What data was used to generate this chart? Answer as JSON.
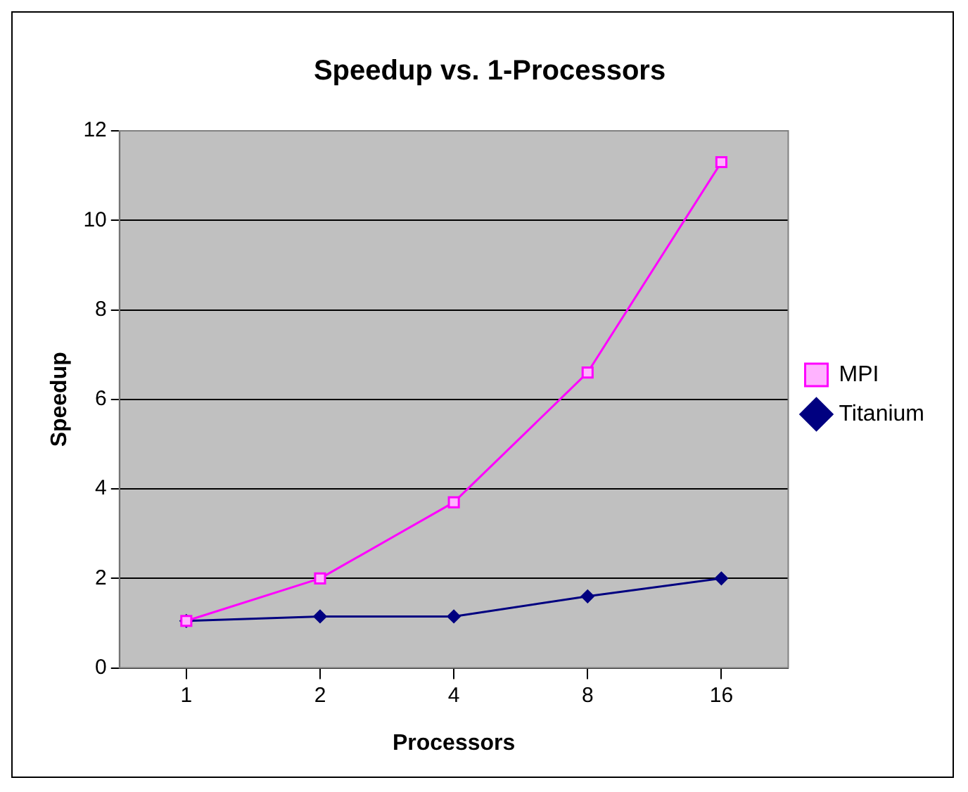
{
  "chart_data": {
    "type": "line",
    "title": "Speedup vs. 1-Processors",
    "xlabel": "Processors",
    "ylabel": "Speedup",
    "categories": [
      "1",
      "2",
      "4",
      "8",
      "16"
    ],
    "series": [
      {
        "name": "Titanium",
        "color": "#000080",
        "values": [
          1.05,
          1.15,
          1.15,
          1.6,
          2.0
        ],
        "marker": "diamond"
      },
      {
        "name": "MPI",
        "color": "#ff00ff",
        "values": [
          1.05,
          2.0,
          3.7,
          6.6,
          11.3
        ],
        "marker": "square"
      }
    ],
    "ylim": [
      0,
      12
    ],
    "yticks": [
      0,
      2,
      4,
      6,
      8,
      10,
      12
    ],
    "grid": "y",
    "legend": "right",
    "line_style": "solid"
  }
}
